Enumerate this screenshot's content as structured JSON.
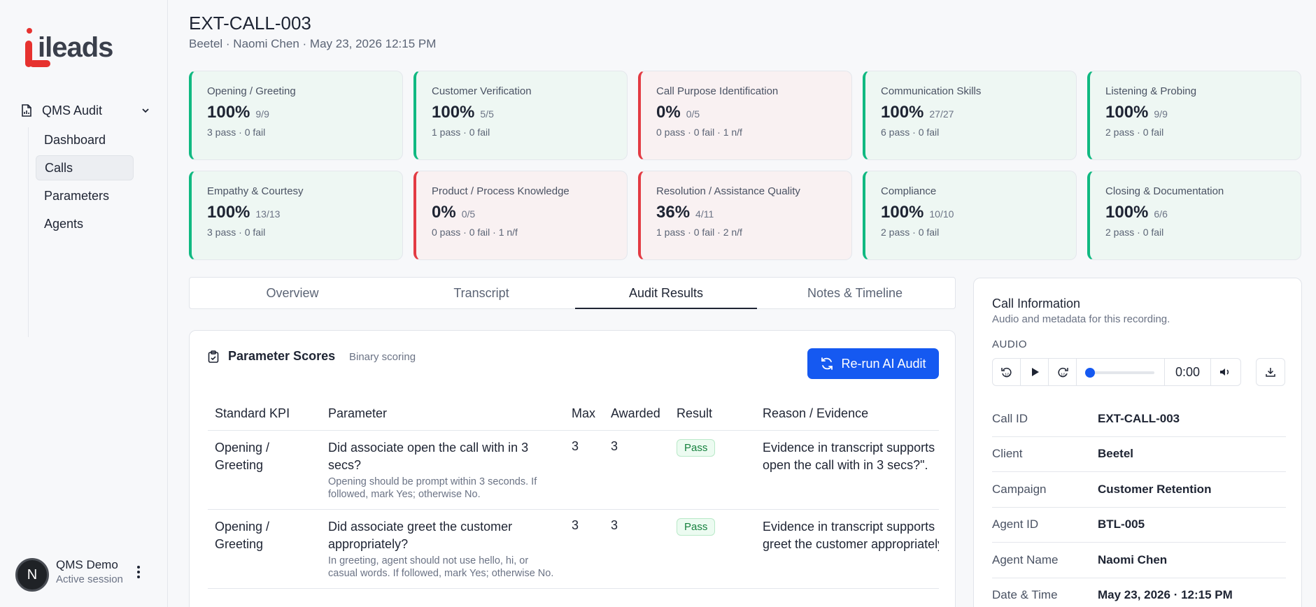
{
  "brand": {
    "logo_text": "ileads",
    "accent": "#e6322f"
  },
  "sidebar": {
    "group_label": "QMS Audit",
    "items": [
      {
        "label": "Dashboard",
        "active": false
      },
      {
        "label": "Calls",
        "active": true
      },
      {
        "label": "Parameters",
        "active": false
      },
      {
        "label": "Agents",
        "active": false
      }
    ],
    "user": {
      "initial": "N",
      "name": "QMS Demo",
      "status": "Active session"
    }
  },
  "header": {
    "title": "EXT-CALL-003",
    "subtitle": "Beetel · Naomi Chen · May 23, 2026 12:15 PM"
  },
  "kpi_cards": [
    {
      "title": "Opening / Greeting",
      "score": "100%",
      "ratio": "9/9",
      "note": "3 pass · 0 fail",
      "status": "pass"
    },
    {
      "title": "Customer Verification",
      "score": "100%",
      "ratio": "5/5",
      "note": "1 pass · 0 fail",
      "status": "pass"
    },
    {
      "title": "Call Purpose Identification",
      "score": "0%",
      "ratio": "0/5",
      "note": "0 pass · 0 fail · 1 n/f",
      "status": "fail"
    },
    {
      "title": "Communication Skills",
      "score": "100%",
      "ratio": "27/27",
      "note": "6 pass · 0 fail",
      "status": "pass"
    },
    {
      "title": "Listening & Probing",
      "score": "100%",
      "ratio": "9/9",
      "note": "2 pass · 0 fail",
      "status": "pass"
    },
    {
      "title": "Empathy & Courtesy",
      "score": "100%",
      "ratio": "13/13",
      "note": "3 pass · 0 fail",
      "status": "pass"
    },
    {
      "title": "Product / Process Knowledge",
      "score": "0%",
      "ratio": "0/5",
      "note": "0 pass · 0 fail · 1 n/f",
      "status": "fail"
    },
    {
      "title": "Resolution / Assistance Quality",
      "score": "36%",
      "ratio": "4/11",
      "note": "1 pass · 0 fail · 2 n/f",
      "status": "fail"
    },
    {
      "title": "Compliance",
      "score": "100%",
      "ratio": "10/10",
      "note": "2 pass · 0 fail",
      "status": "pass"
    },
    {
      "title": "Closing & Documentation",
      "score": "100%",
      "ratio": "6/6",
      "note": "2 pass · 0 fail",
      "status": "pass"
    }
  ],
  "tabs": [
    {
      "label": "Overview",
      "active": false
    },
    {
      "label": "Transcript",
      "active": false
    },
    {
      "label": "Audit Results",
      "active": true
    },
    {
      "label": "Notes & Timeline",
      "active": false
    }
  ],
  "parameter_scores": {
    "title": "Parameter Scores",
    "subtitle": "Binary scoring",
    "rerun_label": "Re-run AI Audit",
    "columns": [
      "Standard KPI",
      "Parameter",
      "Max",
      "Awarded",
      "Result",
      "Reason / Evidence"
    ],
    "rows": [
      {
        "kpi": "Opening / Greeting",
        "parameter": "Did associate open the call with in 3 secs?",
        "description": "Opening should be prompt within 3 seconds. If followed, mark Yes; otherwise No.",
        "max": "3",
        "awarded": "3",
        "result": "Pass",
        "evidence_line1": "Evidence in transcript supports",
        "evidence_line2": "open the call with in 3 secs?\"."
      },
      {
        "kpi": "Opening / Greeting",
        "parameter": "Did associate greet the customer appropriately?",
        "description": "In greeting, agent should not use hello, hi, or casual words. If followed, mark Yes; otherwise No.",
        "max": "3",
        "awarded": "3",
        "result": "Pass",
        "evidence_line1": "Evidence in transcript supports",
        "evidence_line2": "greet the customer appropriately"
      }
    ]
  },
  "call_info": {
    "title": "Call Information",
    "subtitle": "Audio and metadata for this recording.",
    "audio_label": "AUDIO",
    "audio_time": "0:00",
    "audio_progress": 0,
    "fields": [
      {
        "key": "Call ID",
        "value": "EXT-CALL-003"
      },
      {
        "key": "Client",
        "value": "Beetel"
      },
      {
        "key": "Campaign",
        "value": "Customer Retention"
      },
      {
        "key": "Agent ID",
        "value": "BTL-005"
      },
      {
        "key": "Agent Name",
        "value": "Naomi Chen"
      },
      {
        "key": "Date & Time",
        "value": "May 23, 2026 · 12:15 PM"
      }
    ]
  }
}
